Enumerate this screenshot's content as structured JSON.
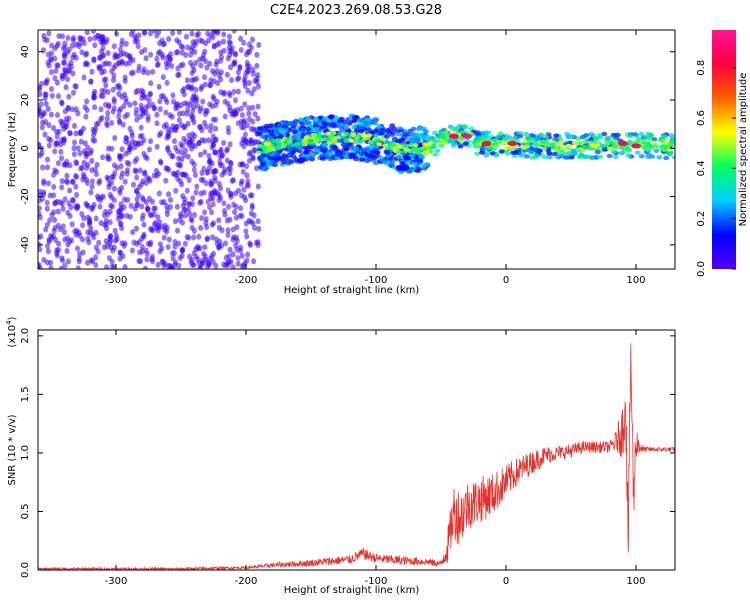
{
  "title": "C2E4.2023.269.08.53.G28",
  "chart_data": [
    {
      "type": "heatmap",
      "title": "C2E4.2023.269.08.53.G28",
      "xlabel": "Height of straight line (km)",
      "ylabel": "Frequency (Hz)",
      "xlim": [
        -360,
        130
      ],
      "ylim": [
        -50,
        49
      ],
      "xticks": [
        -300,
        -200,
        -100,
        0,
        100
      ],
      "yticks": [
        -40,
        -20,
        0,
        20,
        40
      ],
      "colorbar": {
        "label": "Normalized spectral amplitude",
        "range": [
          0.0,
          0.95
        ],
        "ticks": [
          0.0,
          0.2,
          0.4,
          0.6,
          0.8
        ],
        "colormap": "hsv",
        "color_stops": [
          "#5500ff",
          "#0000ff",
          "#00d0ff",
          "#00ff60",
          "#ffff00",
          "#ff6000",
          "#ff0040",
          "#ff1493"
        ]
      },
      "regions": [
        {
          "x_range": [
            -360,
            -190
          ],
          "y_range": [
            -50,
            49
          ],
          "amplitude": 0.05,
          "description": "broadband noise"
        },
        {
          "x_range": [
            -190,
            -60
          ],
          "y_range": [
            -12,
            14
          ],
          "amplitude": 0.25,
          "description": "spread signal band"
        },
        {
          "x_range": [
            -60,
            130
          ],
          "y_range": [
            -5,
            5
          ],
          "amplitude": 0.35,
          "description": "narrow band near 0 Hz"
        }
      ],
      "band_center": [
        [
          -190,
          0
        ],
        [
          -150,
          4
        ],
        [
          -120,
          5
        ],
        [
          -100,
          3
        ],
        [
          -80,
          -1
        ],
        [
          -60,
          0
        ],
        [
          -45,
          5
        ],
        [
          -30,
          5
        ],
        [
          -20,
          2
        ],
        [
          0,
          2
        ],
        [
          20,
          1
        ],
        [
          60,
          1
        ],
        [
          100,
          1
        ],
        [
          125,
          1
        ]
      ],
      "peaks": [
        {
          "x": -40,
          "y": 5,
          "amplitude": 0.85
        },
        {
          "x": -30,
          "y": 5,
          "amplitude": 0.9
        },
        {
          "x": -15,
          "y": 2,
          "amplitude": 0.8
        },
        {
          "x": 5,
          "y": 2,
          "amplitude": 0.85
        },
        {
          "x": 90,
          "y": 2,
          "amplitude": 0.8
        },
        {
          "x": 100,
          "y": 1,
          "amplitude": 0.85
        }
      ]
    },
    {
      "type": "line",
      "xlabel": "Height of straight line (km)",
      "ylabel": "SNR (10 * v/v)",
      "multiplier_label": "(x10",
      "multiplier_exponent": "4",
      "multiplier_suffix": ")",
      "xlim": [
        -360,
        130
      ],
      "ylim": [
        0.0,
        2.05
      ],
      "xticks": [
        -300,
        -200,
        -100,
        0,
        100
      ],
      "yticks": [
        0.0,
        0.5,
        1.0,
        1.5,
        2.0
      ],
      "ytick_labels": [
        "0.0",
        "0.5",
        "1.0",
        "1.5",
        "2.0"
      ],
      "color": "#e8302b",
      "x": [
        -360,
        -300,
        -250,
        -200,
        -180,
        -150,
        -120,
        -110,
        -100,
        -80,
        -60,
        -50,
        -45,
        -40,
        -35,
        -30,
        -20,
        -10,
        0,
        10,
        20,
        30,
        40,
        50,
        60,
        70,
        80,
        85,
        90,
        92,
        94,
        96,
        98,
        100,
        105,
        110,
        120,
        130
      ],
      "values": [
        0.01,
        0.01,
        0.01,
        0.02,
        0.04,
        0.06,
        0.09,
        0.14,
        0.1,
        0.08,
        0.07,
        0.05,
        0.2,
        0.5,
        0.45,
        0.55,
        0.6,
        0.65,
        0.75,
        0.85,
        0.92,
        0.98,
        1.0,
        1.02,
        1.05,
        1.05,
        1.05,
        1.1,
        1.2,
        1.5,
        0.2,
        1.9,
        0.6,
        1.1,
        1.03,
        1.03,
        1.03,
        1.03
      ],
      "noise_amplitude": [
        0.01,
        0.01,
        0.01,
        0.01,
        0.02,
        0.03,
        0.04,
        0.05,
        0.04,
        0.04,
        0.03,
        0.03,
        0.15,
        0.25,
        0.25,
        0.22,
        0.2,
        0.18,
        0.15,
        0.12,
        0.1,
        0.08,
        0.06,
        0.06,
        0.05,
        0.05,
        0.05,
        0.1,
        0.25,
        0.3,
        0.3,
        0.3,
        0.3,
        0.15,
        0.03,
        0.02,
        0.02,
        0.02
      ]
    }
  ]
}
